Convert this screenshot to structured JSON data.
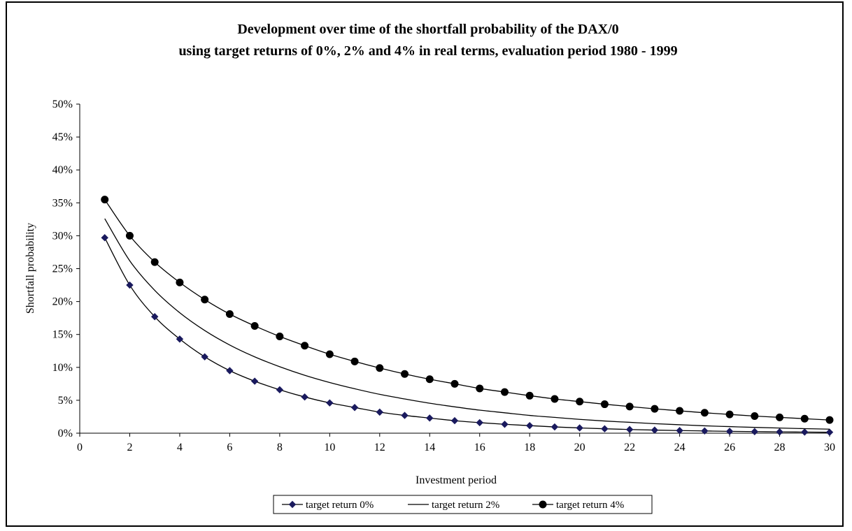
{
  "chart_data": {
    "type": "line",
    "title": "Development over time of the shortfall probability of the DAX/0",
    "subtitle": "using target returns of 0%, 2% and 4% in real terms, evaluation period 1980 - 1999",
    "xlabel": "Investment period",
    "ylabel": "Shortfall probability",
    "xlim": [
      0,
      30
    ],
    "ylim": [
      0,
      50
    ],
    "x_ticks": [
      "0",
      "2",
      "4",
      "6",
      "8",
      "10",
      "12",
      "14",
      "16",
      "18",
      "20",
      "22",
      "24",
      "26",
      "28",
      "30"
    ],
    "y_ticks": [
      "0%",
      "5%",
      "10%",
      "15%",
      "20%",
      "25%",
      "30%",
      "35%",
      "40%",
      "45%",
      "50%"
    ],
    "grid": false,
    "legend_position": "bottom",
    "x": [
      1,
      2,
      3,
      4,
      5,
      6,
      7,
      8,
      9,
      10,
      11,
      12,
      13,
      14,
      15,
      16,
      17,
      18,
      19,
      20,
      21,
      22,
      23,
      24,
      25,
      26,
      27,
      28,
      29,
      30
    ],
    "series": [
      {
        "name": "target return 0%",
        "marker": "diamond",
        "color": "#1a1a5e",
        "values": [
          29.7,
          22.5,
          17.7,
          14.3,
          11.6,
          9.5,
          7.9,
          6.6,
          5.5,
          4.6,
          3.9,
          3.2,
          2.7,
          2.3,
          1.9,
          1.6,
          1.35,
          1.15,
          0.95,
          0.8,
          0.67,
          0.56,
          0.47,
          0.4,
          0.34,
          0.28,
          0.24,
          0.2,
          0.17,
          0.14
        ]
      },
      {
        "name": "target return 2%",
        "marker": "none",
        "color": "#000000",
        "values": [
          32.6,
          26.2,
          21.7,
          18.3,
          15.6,
          13.4,
          11.6,
          10.1,
          8.8,
          7.7,
          6.75,
          5.9,
          5.2,
          4.55,
          4.0,
          3.5,
          3.1,
          2.7,
          2.4,
          2.1,
          1.85,
          1.65,
          1.45,
          1.28,
          1.12,
          1.0,
          0.88,
          0.78,
          0.69,
          0.61
        ]
      },
      {
        "name": "target return 4%",
        "marker": "circle",
        "color": "#000000",
        "values": [
          35.5,
          30.0,
          26.0,
          22.9,
          20.3,
          18.1,
          16.3,
          14.7,
          13.3,
          12.0,
          10.9,
          9.9,
          9.0,
          8.2,
          7.5,
          6.8,
          6.25,
          5.7,
          5.2,
          4.8,
          4.4,
          4.05,
          3.7,
          3.4,
          3.1,
          2.85,
          2.6,
          2.4,
          2.2,
          2.0
        ]
      }
    ]
  }
}
